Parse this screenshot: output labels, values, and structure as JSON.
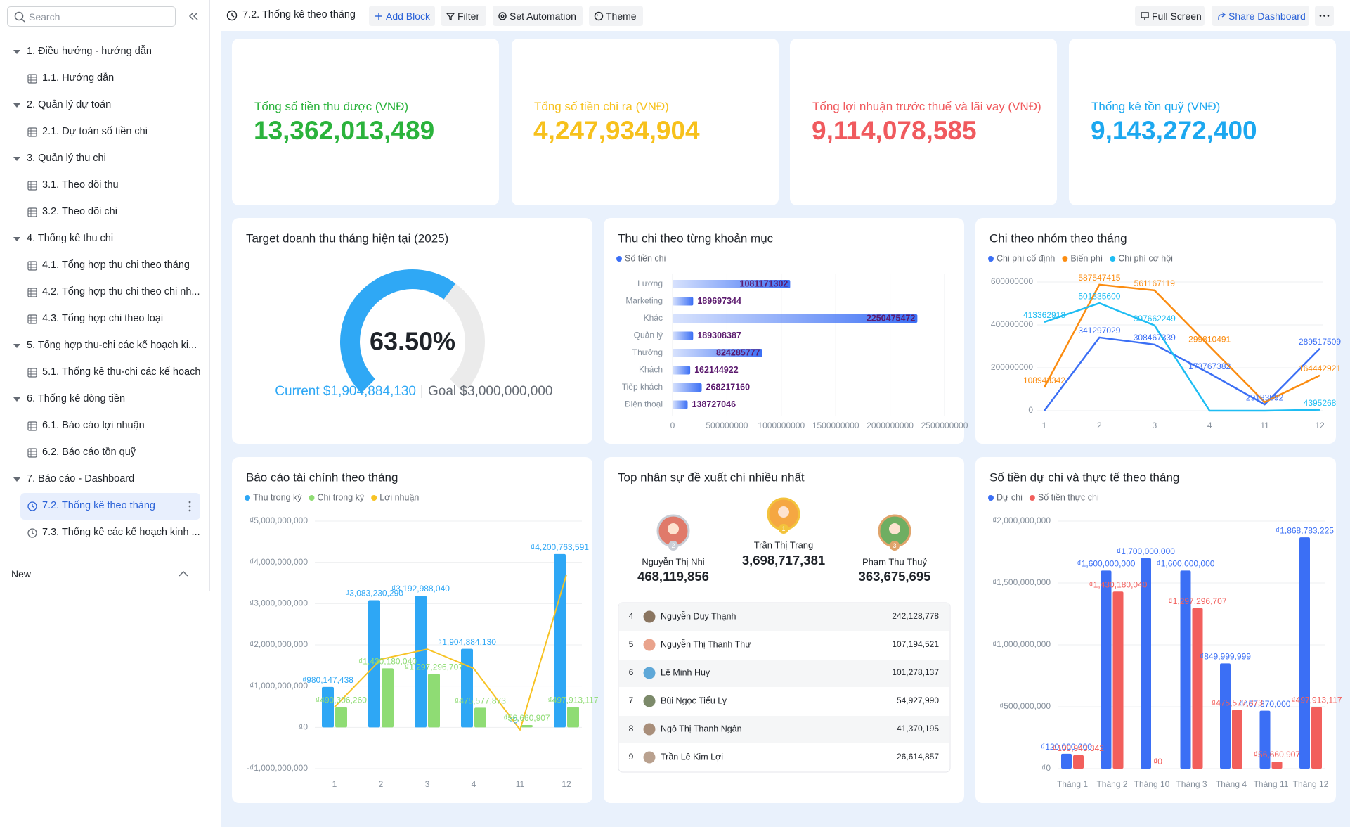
{
  "sidebar": {
    "search_placeholder": "Search",
    "items": [
      {
        "label": "1. Điều hướng - hướng dẫn",
        "level": 1
      },
      {
        "label": "1.1. Hướng dẫn",
        "level": 2,
        "icon": "table"
      },
      {
        "label": "2. Quản lý dự toán",
        "level": 1
      },
      {
        "label": "2.1. Dự toán số tiền chi",
        "level": 2,
        "icon": "table"
      },
      {
        "label": "3. Quản lý thu chi",
        "level": 1
      },
      {
        "label": "3.1. Theo dõi thu",
        "level": 2,
        "icon": "table"
      },
      {
        "label": "3.2. Theo dõi chi",
        "level": 2,
        "icon": "table"
      },
      {
        "label": "4. Thống kê thu chi",
        "level": 1
      },
      {
        "label": "4.1. Tổng hợp thu chi theo tháng",
        "level": 2,
        "icon": "table"
      },
      {
        "label": "4.2. Tổng hợp thu chi theo chi nh...",
        "level": 2,
        "icon": "table"
      },
      {
        "label": "4.3. Tổng hợp chi theo loại",
        "level": 2,
        "icon": "table"
      },
      {
        "label": "5. Tổng hợp thu-chi các kế hoạch ki...",
        "level": 1
      },
      {
        "label": "5.1. Thống kê thu-chi các kế hoạch",
        "level": 2,
        "icon": "table"
      },
      {
        "label": "6. Thống kê dòng tiền",
        "level": 1
      },
      {
        "label": "6.1. Báo cáo lợi nhuận",
        "level": 2,
        "icon": "table"
      },
      {
        "label": "6.2. Báo cáo tồn quỹ",
        "level": 2,
        "icon": "table"
      },
      {
        "label": "7. Báo cáo - Dashboard",
        "level": 1
      },
      {
        "label": "7.2. Thống kê theo tháng",
        "level": 2,
        "icon": "dashboard",
        "active": true
      },
      {
        "label": "7.3. Thống kê các kế hoạch kinh ...",
        "level": 2,
        "icon": "dashboard"
      }
    ],
    "new_label": "New"
  },
  "toolbar": {
    "title": "7.2. Thống kê theo tháng",
    "buttons": [
      "Add Block",
      "Filter",
      "Set Automation",
      "Theme"
    ],
    "right_buttons": [
      "Full Screen",
      "Share Dashboard"
    ]
  },
  "kpis": [
    {
      "label": "Tổng số tiền thu được (VNĐ)",
      "value": "13,362,013,489",
      "color": "#2bb33c"
    },
    {
      "label": "Tổng số tiền chi ra (VNĐ)",
      "value": "4,247,934,904",
      "color": "#f7c11c"
    },
    {
      "label": "Tổng lợi nhuận trước thuế và lãi vay (VNĐ)",
      "value": "9,114,078,585",
      "color": "#f05a5e"
    },
    {
      "label": "Thống kê tồn quỹ (VNĐ)",
      "value": "9,143,272,400",
      "color": "#1ca8f0"
    }
  ],
  "chart_data": [
    {
      "type": "gauge",
      "title": "Target doanh thu tháng hiện tại (2025)",
      "value": 63.5,
      "value_label": "63.50%",
      "ylim": [
        0,
        100
      ],
      "color": "#2fa8f5",
      "current_label": "Current $1,904,884,130",
      "goal_label": "Goal $3,000,000,000"
    },
    {
      "type": "hbar",
      "title": "Thu chi theo từng khoản mục",
      "categories": [
        "Lương",
        "Marketing",
        "Khác",
        "Quản lý",
        "Thưởng",
        "Khách",
        "Tiếp khách",
        "Điện thoại"
      ],
      "series": [
        {
          "name": "Số tiền chi",
          "color": "#3b6ff5",
          "values": [
            1081171302,
            189697344,
            2250475472,
            189308387,
            824285777,
            162144922,
            268217160,
            138727046
          ]
        }
      ],
      "xlim": [
        0,
        2500000000
      ],
      "xticks": [
        0,
        500000000,
        1000000000,
        1500000000,
        2000000000,
        2500000000
      ],
      "grid": true
    },
    {
      "type": "line",
      "title": "Chi theo nhóm theo tháng",
      "categories": [
        "1",
        "2",
        "3",
        "4",
        "11",
        "12"
      ],
      "series": [
        {
          "name": "Chi phí cố định",
          "color": "#3b6ff5",
          "values": [
            0,
            341297029,
            308467339,
            173767382,
            29183592,
            289517509
          ],
          "value_labels": [
            null,
            "341297029",
            "308467339",
            "173767382",
            "29183592",
            "289517509"
          ]
        },
        {
          "name": "Biến phí",
          "color": "#fb8c10",
          "values": [
            108943342,
            587547415,
            561167119,
            299810491,
            40000000,
            164442921
          ],
          "value_labels": [
            "108943342",
            "587547415",
            "561167119",
            "299810491",
            null,
            "164442921"
          ]
        },
        {
          "name": "Chi phí cơ hội",
          "color": "#1ebdf3",
          "values": [
            413362918,
            501335600,
            397662249,
            0,
            0,
            4395268
          ],
          "value_labels": [
            "413362918",
            "501335600",
            "397662249",
            null,
            null,
            "4395268"
          ]
        }
      ],
      "ylim": [
        0,
        600000000
      ],
      "yticks": [
        0,
        200000000,
        400000000,
        600000000
      ],
      "grid": true
    },
    {
      "type": "bar",
      "title": "Báo cáo tài chính theo tháng",
      "categories": [
        "1",
        "2",
        "3",
        "4",
        "11",
        "12"
      ],
      "series": [
        {
          "name": "Thu trong kỳ",
          "color": "#2ea7f5",
          "values": [
            980147438,
            3083230290,
            3192988040,
            1904884130,
            0,
            4200763591
          ],
          "value_labels": [
            "₫980,147,438",
            "₫3,083,230,290",
            "₫3,192,988,040",
            "₫1,904,884,130",
            "₫0",
            "₫4,200,763,591"
          ]
        },
        {
          "name": "Chi trong kỳ",
          "color": "#8fdc74",
          "values": [
            490306260,
            1430180040,
            1297296707,
            475577873,
            56660907,
            497913117
          ],
          "value_labels": [
            "₫490,306,260",
            "₫1,430,180,040",
            "₫1,297,296,707",
            "₫475,577,873",
            "₫56,660,907",
            "₫497,913,117"
          ]
        },
        {
          "name": "Lợi nhuận",
          "color": "#f7c325",
          "type": "line",
          "values": [
            489841178,
            1653050250,
            1895691333,
            1429306257,
            -56660907,
            3702850474
          ]
        }
      ],
      "ylim": [
        -1000000000,
        5000000000
      ],
      "yticks": [
        {
          "value": -1000000000,
          "label": "-₫1,000,000,000"
        },
        {
          "value": 0,
          "label": "₫0"
        },
        {
          "value": 1000000000,
          "label": "₫1,000,000,000"
        },
        {
          "value": 2000000000,
          "label": "₫2,000,000,000"
        },
        {
          "value": 3000000000,
          "label": "₫3,000,000,000"
        },
        {
          "value": 4000000000,
          "label": "₫4,000,000,000"
        },
        {
          "value": 5000000000,
          "label": "₫5,000,000,000"
        }
      ],
      "grid": true
    },
    {
      "type": "bar",
      "title": "Số tiền dự chi và thực tế theo tháng",
      "categories": [
        "Tháng 1",
        "Tháng 2",
        "Tháng 10",
        "Tháng 3",
        "Tháng 4",
        "Tháng 11",
        "Tháng 12"
      ],
      "series": [
        {
          "name": "Dự chi",
          "color": "#3b6ff5",
          "values": [
            120000000,
            1600000000,
            1700000000,
            1600000000,
            849999999,
            467870000,
            1868783225
          ],
          "value_labels": [
            "₫120,000,000",
            "₫1,600,000,000",
            "₫1,700,000,000",
            "₫1,600,000,000",
            "₫849,999,999",
            "₫467,870,000",
            "₫1,868,783,225"
          ]
        },
        {
          "name": "Số tiền thực chi",
          "color": "#f25f5c",
          "values": [
            108943342,
            1430180040,
            0,
            1297296707,
            475577873,
            56660907,
            497913117
          ],
          "value_labels": [
            "₫108,943,342",
            "₫1,430,180,040",
            "₫0",
            "₫1,297,296,707",
            "₫475,577,873",
            "₫56,660,907",
            "₫497,913,117"
          ]
        }
      ],
      "ylim": [
        0,
        2000000000
      ],
      "yticks": [
        {
          "value": 0,
          "label": "₫0"
        },
        {
          "value": 500000000,
          "label": "₫500,000,000"
        },
        {
          "value": 1000000000,
          "label": "₫1,000,000,000"
        },
        {
          "value": 1500000000,
          "label": "₫1,500,000,000"
        },
        {
          "value": 2000000000,
          "label": "₫2,000,000,000"
        }
      ],
      "grid": true
    }
  ],
  "leaderboard": {
    "title": "Top nhân sự đề xuất chi nhiều nhất",
    "podium": [
      {
        "rank": 1,
        "name": "Trần Thị Trang",
        "value": "3,698,717,381"
      },
      {
        "rank": 2,
        "name": "Nguyễn Thị Nhi",
        "value": "468,119,856"
      },
      {
        "rank": 3,
        "name": "Phạm Thu Thuỷ",
        "value": "363,675,695"
      }
    ],
    "rows": [
      {
        "rank": 4,
        "name": "Nguyễn Duy Thạnh",
        "value": "242,128,778"
      },
      {
        "rank": 5,
        "name": "Nguyễn Thị Thanh Thư",
        "value": "107,194,521"
      },
      {
        "rank": 6,
        "name": "Lê Minh Huy",
        "value": "101,278,137"
      },
      {
        "rank": 7,
        "name": "Bùi Ngọc Tiểu Ly",
        "value": "54,927,990"
      },
      {
        "rank": 8,
        "name": "Ngô Thị Thanh Ngân",
        "value": "41,370,195"
      },
      {
        "rank": 9,
        "name": "Trần Lê Kim Lợi",
        "value": "26,614,857"
      }
    ]
  }
}
